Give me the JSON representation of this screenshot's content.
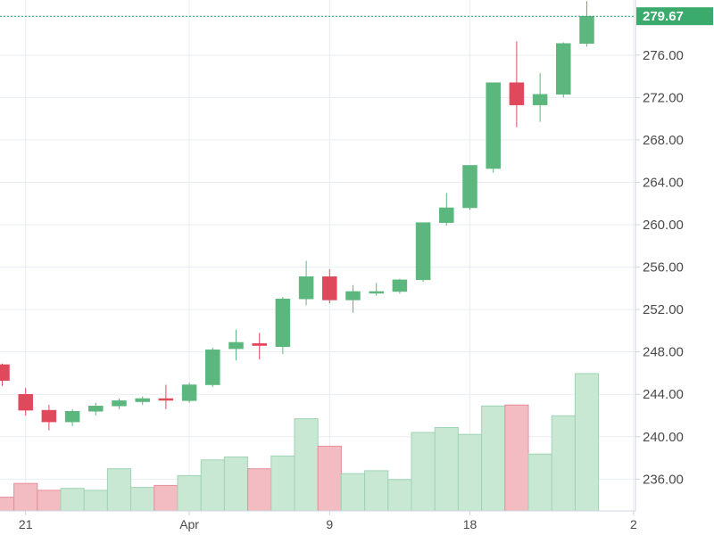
{
  "chart_data": {
    "type": "candlestick",
    "colors": {
      "up": "#5cb77e",
      "down": "#e0485c",
      "volume_up": "#c8e8d4",
      "volume_down": "#f2bcc2",
      "volume_up_border": "#9fd3b3",
      "volume_down_border": "#e58f9a",
      "grid": "#e9edf2",
      "axis_line": "#cfd6dd",
      "last_price_line": "#2a9d6a",
      "last_price_bg": "#3aab6d"
    },
    "y_axis": {
      "position": "right",
      "range": [
        233.0,
        281.2
      ],
      "ticks": [
        "236.00",
        "240.00",
        "244.00",
        "248.00",
        "252.00",
        "256.00",
        "260.00",
        "264.00",
        "268.00",
        "272.00",
        "276.00"
      ]
    },
    "x_axis": {
      "ticks": [
        {
          "label": "21",
          "index": 1
        },
        {
          "label": "Apr",
          "index": 8
        },
        {
          "label": "9",
          "index": 14
        },
        {
          "label": "18",
          "index": 20
        },
        {
          "label": "2",
          "index": 27
        }
      ]
    },
    "last_price": "279.67",
    "candles": [
      {
        "o": 246.8,
        "h": 246.9,
        "l": 244.8,
        "c": 245.3
      },
      {
        "o": 244.0,
        "h": 244.6,
        "l": 242.0,
        "c": 242.5
      },
      {
        "o": 242.5,
        "h": 243.0,
        "l": 240.6,
        "c": 241.4
      },
      {
        "o": 241.4,
        "h": 242.6,
        "l": 241.0,
        "c": 242.4
      },
      {
        "o": 242.4,
        "h": 243.2,
        "l": 242.0,
        "c": 242.9
      },
      {
        "o": 242.9,
        "h": 243.6,
        "l": 242.6,
        "c": 243.4
      },
      {
        "o": 243.3,
        "h": 243.8,
        "l": 243.0,
        "c": 243.6
      },
      {
        "o": 243.6,
        "h": 244.9,
        "l": 242.6,
        "c": 243.5
      },
      {
        "o": 243.4,
        "h": 245.1,
        "l": 243.2,
        "c": 244.9
      },
      {
        "o": 244.9,
        "h": 248.4,
        "l": 244.7,
        "c": 248.2
      },
      {
        "o": 248.3,
        "h": 250.1,
        "l": 247.2,
        "c": 248.9
      },
      {
        "o": 248.8,
        "h": 249.8,
        "l": 247.3,
        "c": 248.6
      },
      {
        "o": 248.5,
        "h": 253.2,
        "l": 247.8,
        "c": 253.0
      },
      {
        "o": 253.0,
        "h": 256.6,
        "l": 252.4,
        "c": 255.1
      },
      {
        "o": 255.1,
        "h": 255.8,
        "l": 252.6,
        "c": 252.9
      },
      {
        "o": 252.9,
        "h": 254.3,
        "l": 251.7,
        "c": 253.7
      },
      {
        "o": 253.6,
        "h": 254.5,
        "l": 253.3,
        "c": 253.7
      },
      {
        "o": 253.7,
        "h": 254.9,
        "l": 253.5,
        "c": 254.8
      },
      {
        "o": 254.8,
        "h": 260.2,
        "l": 254.6,
        "c": 260.2
      },
      {
        "o": 260.2,
        "h": 263.0,
        "l": 259.9,
        "c": 261.6
      },
      {
        "o": 261.6,
        "h": 265.6,
        "l": 261.4,
        "c": 265.6
      },
      {
        "o": 265.3,
        "h": 273.4,
        "l": 264.9,
        "c": 273.4
      },
      {
        "o": 273.4,
        "h": 277.3,
        "l": 269.2,
        "c": 271.3
      },
      {
        "o": 271.3,
        "h": 274.3,
        "l": 269.7,
        "c": 272.3
      },
      {
        "o": 272.3,
        "h": 277.2,
        "l": 272.0,
        "c": 277.1
      },
      {
        "o": 277.1,
        "h": 281.1,
        "l": 276.8,
        "c": 279.67
      }
    ],
    "volumes": [
      {
        "v": 0.14,
        "dir": "down"
      },
      {
        "v": 0.28,
        "dir": "down"
      },
      {
        "v": 0.21,
        "dir": "down"
      },
      {
        "v": 0.23,
        "dir": "up"
      },
      {
        "v": 0.21,
        "dir": "up"
      },
      {
        "v": 0.43,
        "dir": "up"
      },
      {
        "v": 0.24,
        "dir": "up"
      },
      {
        "v": 0.26,
        "dir": "down"
      },
      {
        "v": 0.36,
        "dir": "up"
      },
      {
        "v": 0.52,
        "dir": "up"
      },
      {
        "v": 0.55,
        "dir": "up"
      },
      {
        "v": 0.43,
        "dir": "down"
      },
      {
        "v": 0.56,
        "dir": "up"
      },
      {
        "v": 0.94,
        "dir": "up"
      },
      {
        "v": 0.66,
        "dir": "down"
      },
      {
        "v": 0.38,
        "dir": "up"
      },
      {
        "v": 0.41,
        "dir": "up"
      },
      {
        "v": 0.32,
        "dir": "up"
      },
      {
        "v": 0.8,
        "dir": "up"
      },
      {
        "v": 0.85,
        "dir": "up"
      },
      {
        "v": 0.78,
        "dir": "up"
      },
      {
        "v": 1.07,
        "dir": "up"
      },
      {
        "v": 1.08,
        "dir": "down"
      },
      {
        "v": 0.58,
        "dir": "up"
      },
      {
        "v": 0.97,
        "dir": "up"
      },
      {
        "v": 1.4,
        "dir": "up"
      }
    ]
  }
}
